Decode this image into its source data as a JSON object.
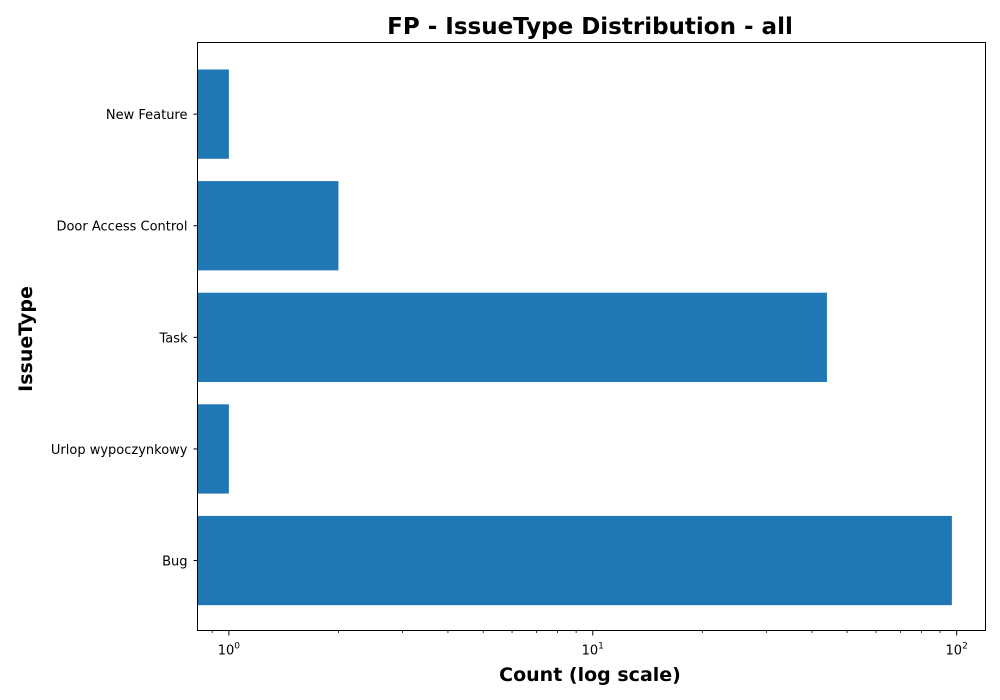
{
  "chart_data": {
    "type": "bar",
    "orientation": "horizontal",
    "title": "FP - IssueType Distribution - all",
    "xlabel": "Count (log scale)",
    "ylabel": "IssueType",
    "xscale": "log",
    "xlim": [
      0.82,
      120
    ],
    "x_ticks": [
      {
        "value": 1,
        "base": "10",
        "exp": "0"
      },
      {
        "value": 10,
        "base": "10",
        "exp": "1"
      },
      {
        "value": 100,
        "base": "10",
        "exp": "2"
      }
    ],
    "categories": [
      "New Feature",
      "Door Access Control",
      "Task",
      "Urlop wypoczynkowy",
      "Bug"
    ],
    "values": [
      1,
      2,
      44,
      1,
      97
    ],
    "bar_color": "#1f77b4",
    "grid": false,
    "legend": false
  }
}
